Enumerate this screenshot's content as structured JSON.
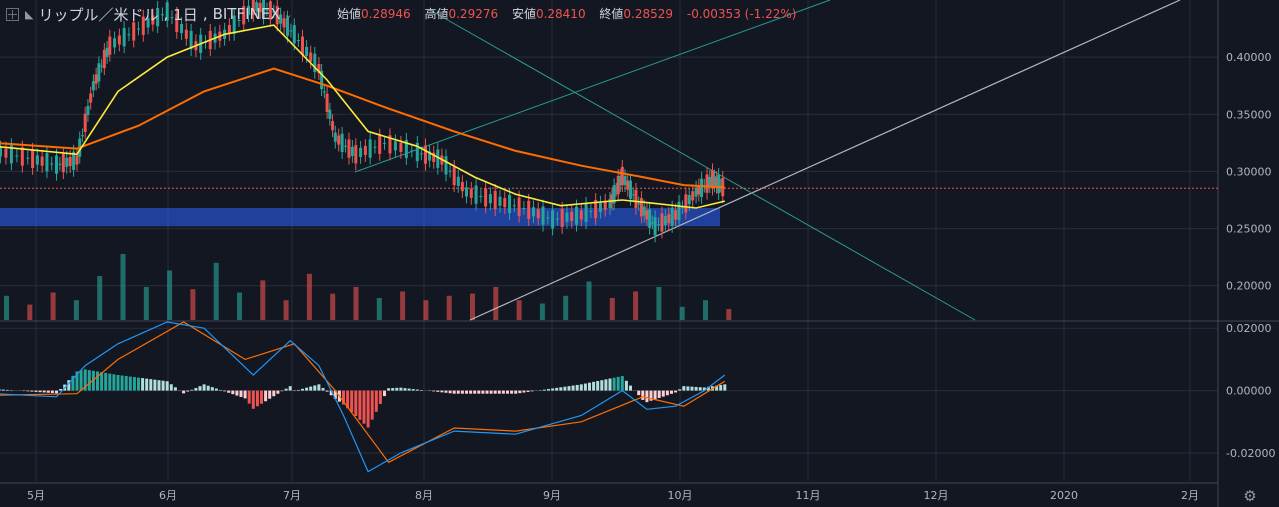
{
  "header": {
    "symbol_mark": "◣",
    "title": "リップル／米ドル",
    "interval": "1日",
    "exchange": "BITFINEX",
    "dropdown_icon": "chevron-down-icon",
    "open_label": "始値",
    "open_value": "0.28946",
    "high_label": "高値",
    "high_value": "0.29276",
    "low_label": "安値",
    "low_value": "0.28410",
    "close_label": "終値",
    "close_value": "0.28529",
    "change_text": "-0.00353 (-1.22%)"
  },
  "settings_icon": "gear-icon",
  "colors": {
    "background": "#131722",
    "grid": "#2a2e39",
    "up_candle": "#26a69a",
    "down_candle": "#ef5350",
    "ema_short": "#2196f3",
    "ema_mid": "#ffeb3b",
    "ema_long": "#ff6d00",
    "cloud_bull": "#1b5e20",
    "cloud_bear": "#7f1d2a",
    "zone": "#2962ff",
    "trendline_white": "#b2b5be",
    "trendline_teal": "#2a9d8f",
    "macd": "#2196f3",
    "signal": "#ff6d00"
  },
  "chart_data": [
    {
      "type": "line",
      "title": "",
      "x_ticks": [
        "5月",
        "6月",
        "7月",
        "8月",
        "9月",
        "10月",
        "11月",
        "12月",
        "2020",
        "2月"
      ],
      "y_ticks": [
        "0.40000",
        "0.35000",
        "0.30000",
        "0.25000",
        "0.20000"
      ],
      "ylim": [
        0.17,
        0.45
      ],
      "price_line": 0.28529,
      "support_zone": [
        0.252,
        0.268
      ],
      "series": [
        {
          "kind": "close",
          "x": [
            "2019-04-20",
            "2019-04-28",
            "2019-05-05",
            "2019-05-10",
            "2019-05-14",
            "2019-05-18",
            "2019-05-25",
            "2019-06-01",
            "2019-06-08",
            "2019-06-15",
            "2019-06-22",
            "2019-06-27",
            "2019-07-02",
            "2019-07-08",
            "2019-07-12",
            "2019-07-17",
            "2019-07-24",
            "2019-08-01",
            "2019-08-07",
            "2019-08-13",
            "2019-08-20",
            "2019-08-27",
            "2019-09-03",
            "2019-09-10",
            "2019-09-17",
            "2019-09-20",
            "2019-09-24",
            "2019-09-28",
            "2019-10-03",
            "2019-10-08",
            "2019-10-12",
            "2019-10-15"
          ],
          "values": [
            0.318,
            0.312,
            0.306,
            0.31,
            0.375,
            0.41,
            0.425,
            0.44,
            0.41,
            0.42,
            0.445,
            0.44,
            0.42,
            0.39,
            0.33,
            0.315,
            0.325,
            0.317,
            0.31,
            0.282,
            0.275,
            0.268,
            0.258,
            0.262,
            0.272,
            0.296,
            0.272,
            0.252,
            0.262,
            0.282,
            0.293,
            0.285
          ]
        },
        {
          "kind": "ema-fast",
          "x": [
            "2019-04-20",
            "2019-05-10",
            "2019-05-20",
            "2019-06-01",
            "2019-06-15",
            "2019-06-27",
            "2019-07-10",
            "2019-07-20",
            "2019-08-01",
            "2019-08-15",
            "2019-08-25",
            "2019-09-05",
            "2019-09-20",
            "2019-09-28",
            "2019-10-08",
            "2019-10-15"
          ],
          "values": [
            0.322,
            0.315,
            0.37,
            0.4,
            0.42,
            0.428,
            0.38,
            0.335,
            0.322,
            0.295,
            0.28,
            0.27,
            0.275,
            0.272,
            0.268,
            0.274
          ]
        },
        {
          "kind": "ema-slow",
          "x": [
            "2019-04-20",
            "2019-05-10",
            "2019-05-25",
            "2019-06-10",
            "2019-06-27",
            "2019-07-10",
            "2019-07-25",
            "2019-08-10",
            "2019-08-25",
            "2019-09-10",
            "2019-09-25",
            "2019-10-05",
            "2019-10-15"
          ],
          "values": [
            0.325,
            0.32,
            0.34,
            0.37,
            0.39,
            0.375,
            0.355,
            0.335,
            0.318,
            0.305,
            0.295,
            0.288,
            0.286
          ]
        }
      ],
      "volume": [
        22,
        14,
        25,
        18,
        40,
        60,
        30,
        45,
        28,
        52,
        25,
        36,
        18,
        42,
        24,
        30,
        20,
        26,
        18,
        22,
        24,
        30,
        18,
        15,
        22,
        35,
        20,
        26,
        30,
        12,
        18,
        10
      ]
    },
    {
      "type": "line",
      "title": "",
      "y_ticks": [
        "0.02000",
        "0.00000",
        "-0.02000"
      ],
      "ylim": [
        -0.029,
        0.022
      ],
      "series": [
        {
          "kind": "macd",
          "x": [
            "2019-04-20",
            "2019-05-05",
            "2019-05-12",
            "2019-05-20",
            "2019-06-01",
            "2019-06-10",
            "2019-06-22",
            "2019-07-01",
            "2019-07-08",
            "2019-07-14",
            "2019-07-20",
            "2019-07-28",
            "2019-08-10",
            "2019-08-25",
            "2019-09-10",
            "2019-09-20",
            "2019-09-26",
            "2019-10-03",
            "2019-10-10",
            "2019-10-15"
          ],
          "values": [
            -0.001,
            -0.002,
            0.008,
            0.015,
            0.022,
            0.02,
            0.005,
            0.016,
            0.008,
            -0.008,
            -0.026,
            -0.02,
            -0.013,
            -0.014,
            -0.008,
            0.0,
            -0.006,
            -0.005,
            0.0,
            0.005
          ]
        },
        {
          "kind": "signal",
          "x": [
            "2019-04-20",
            "2019-05-10",
            "2019-05-20",
            "2019-06-05",
            "2019-06-20",
            "2019-07-02",
            "2019-07-12",
            "2019-07-25",
            "2019-08-10",
            "2019-08-25",
            "2019-09-10",
            "2019-09-25",
            "2019-10-05",
            "2019-10-15"
          ],
          "values": [
            -0.0015,
            -0.001,
            0.01,
            0.022,
            0.01,
            0.015,
            0.0,
            -0.023,
            -0.012,
            -0.013,
            -0.01,
            -0.002,
            -0.005,
            0.003
          ]
        }
      ]
    }
  ]
}
